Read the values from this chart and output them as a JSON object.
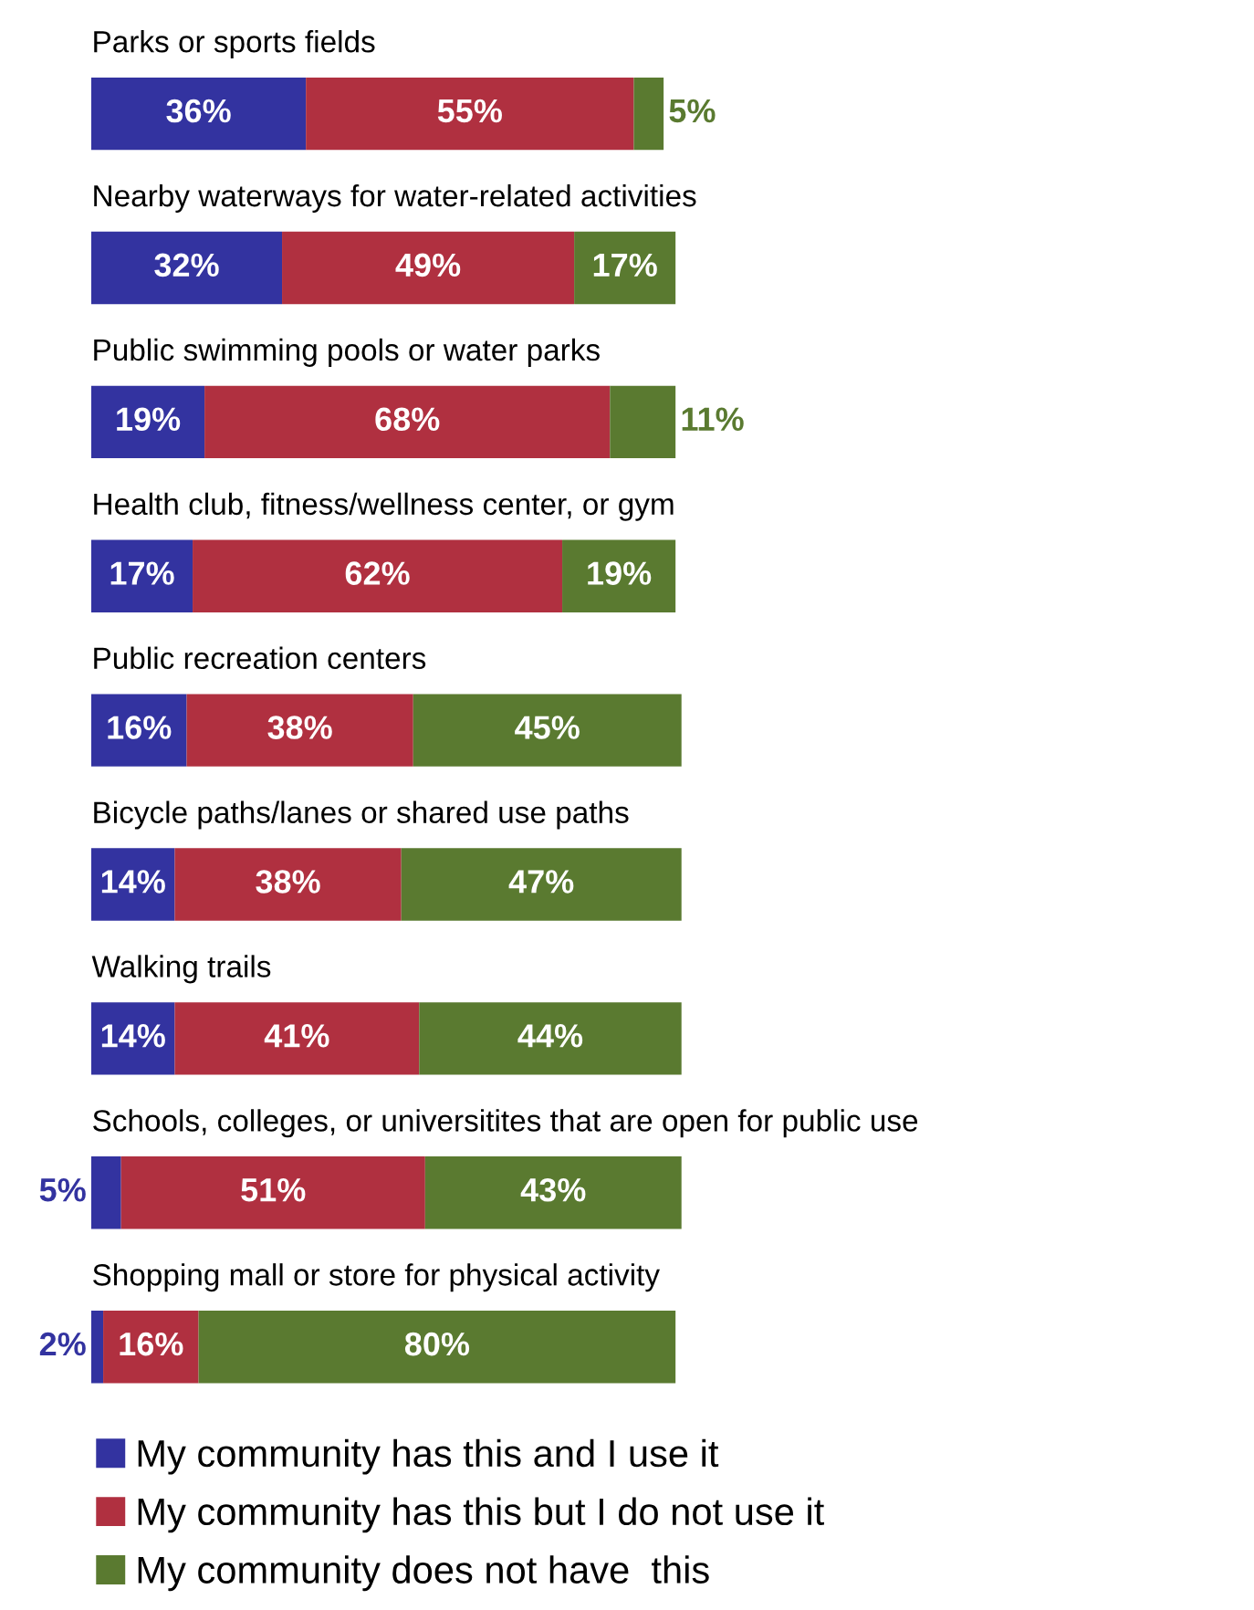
{
  "chart_data": {
    "type": "bar",
    "orientation": "horizontal",
    "stacked": true,
    "categories": [
      "Parks or sports fields",
      "Nearby waterways for water-related activities",
      "Public swimming pools or water parks",
      "Health club, fitness/wellness center, or gym",
      "Public recreation centers",
      "Bicycle paths/lanes or shared use paths",
      "Walking trails",
      "Schools, colleges, or universitites that are open for public use",
      "Shopping mall or store for physical activity"
    ],
    "series": [
      {
        "name": "My community has this and I use it",
        "color": "#3333a0",
        "values": [
          36,
          32,
          19,
          17,
          16,
          14,
          14,
          5,
          2
        ],
        "value_labels": [
          "36%",
          "32%",
          "19%",
          "17%",
          "16%",
          "14%",
          "14%",
          "5%",
          "2%"
        ]
      },
      {
        "name": "My community has this but I do not use it",
        "color": "#b03040",
        "values": [
          55,
          49,
          68,
          62,
          38,
          38,
          41,
          51,
          16
        ],
        "value_labels": [
          "55%",
          "49%",
          "68%",
          "62%",
          "38%",
          "38%",
          "41%",
          "51%",
          "16%"
        ]
      },
      {
        "name": "My community does not have  this",
        "color": "#5a7a30",
        "values": [
          5,
          17,
          11,
          19,
          45,
          47,
          44,
          43,
          80
        ],
        "value_labels": [
          "5%",
          "17%",
          "11%",
          "19%",
          "45%",
          "47%",
          "44%",
          "43%",
          "80%"
        ]
      }
    ],
    "legend": "bottom"
  }
}
